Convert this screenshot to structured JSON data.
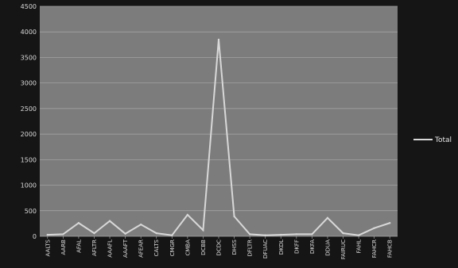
{
  "chart_data": {
    "type": "line",
    "categories": [
      "AALTS",
      "AARB",
      "AFAL",
      "AFLTR",
      "AAAFL",
      "AAAFT",
      "AFEAR",
      "CALTS",
      "CMGR",
      "CMBA",
      "DCBB",
      "DCDC",
      "DHSS",
      "DFLTR",
      "DFUAC",
      "DKDL",
      "DKFF",
      "DKFA",
      "DDUA",
      "FAIRUC",
      "FAHL",
      "FAHCR",
      "FAHCB"
    ],
    "series": [
      {
        "name": "Total",
        "values": [
          30,
          40,
          260,
          60,
          300,
          50,
          230,
          60,
          20,
          420,
          120,
          3850,
          390,
          40,
          20,
          30,
          40,
          40,
          360,
          60,
          20,
          160,
          260
        ]
      }
    ],
    "ylim": [
      0,
      4500
    ],
    "yticks": [
      "0",
      "500",
      "1000",
      "1500",
      "2000",
      "2500",
      "3000",
      "3500",
      "4000",
      "4500"
    ],
    "grid": true,
    "legend": "right",
    "colors": {
      "background": "#151515",
      "plot_area": "#7c7c7c",
      "gridline": "#a8a8a8",
      "line": "#d8d8d8",
      "text": "#d9d9d9"
    }
  }
}
